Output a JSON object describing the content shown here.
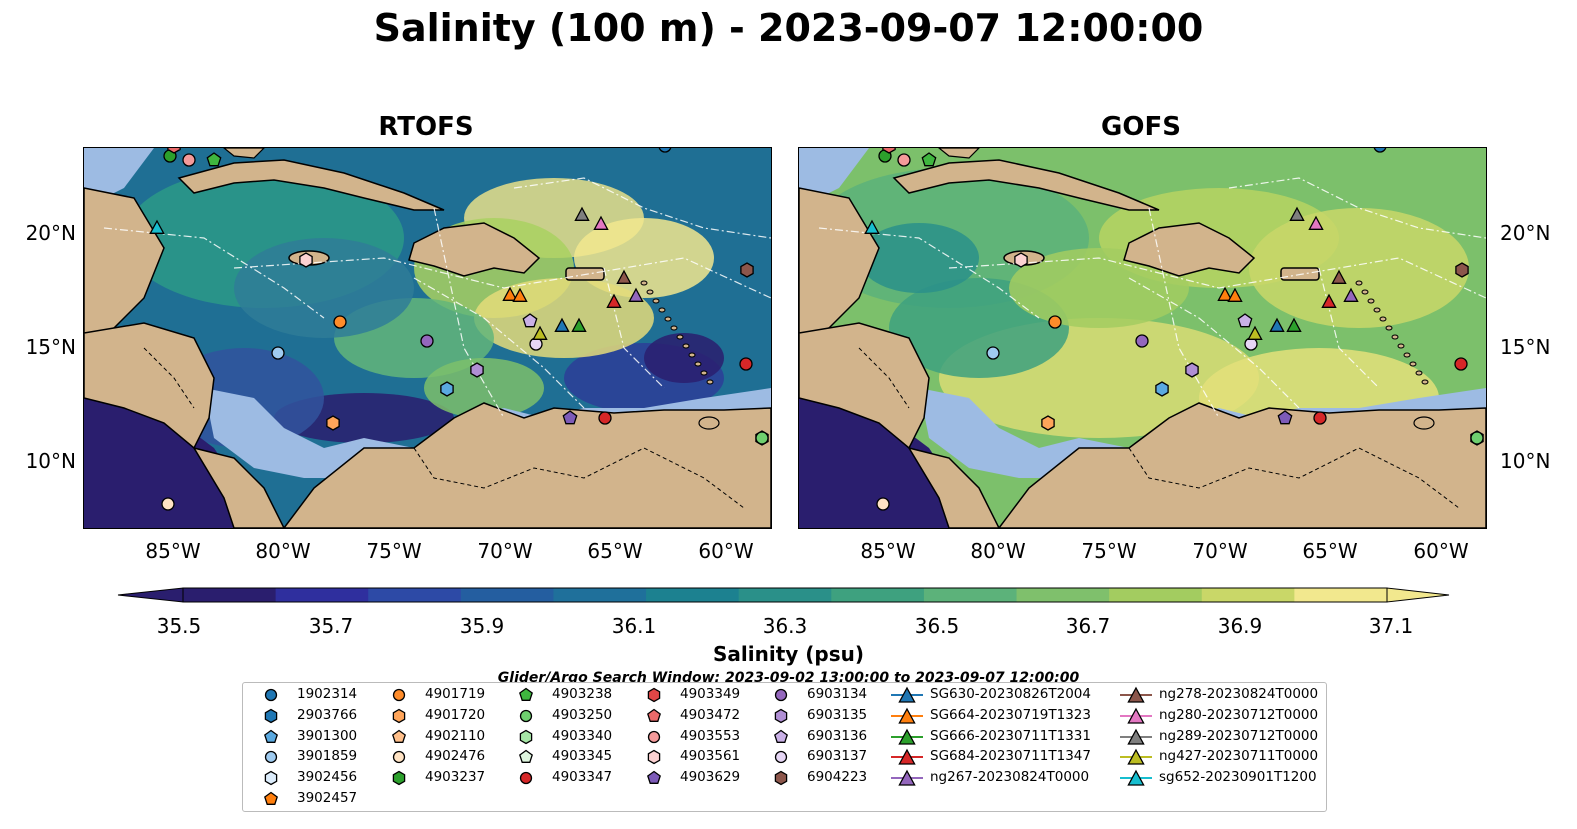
{
  "title": "Salinity (100 m) - 2023-09-07 12:00:00",
  "panels": [
    {
      "title": "RTOFS",
      "id": "rtofs"
    },
    {
      "title": "GOFS",
      "id": "gofs"
    }
  ],
  "lat_ticks": [
    "20°N",
    "15°N",
    "10°N"
  ],
  "lon_ticks": [
    "85°W",
    "80°W",
    "75°W",
    "70°W",
    "65°W",
    "60°W"
  ],
  "colorbar": {
    "label": "Salinity (psu)",
    "ticks": [
      "35.5",
      "35.7",
      "35.9",
      "36.1",
      "36.3",
      "36.5",
      "36.7",
      "36.9",
      "37.1"
    ],
    "colors": [
      "#2a1e6e",
      "#2f2f9e",
      "#2d4aa6",
      "#245ea0",
      "#1f709b",
      "#1c8190",
      "#2a9089",
      "#3ea17f",
      "#5cb27a",
      "#7fc06c",
      "#a3cc60",
      "#c9d768",
      "#f2e88e"
    ]
  },
  "search_window": "Glider/Argo Search Window: 2023-09-02 13:00:00 to 2023-09-07 12:00:00",
  "legend": [
    [
      {
        "label": "1902314",
        "shape": "circle",
        "color": "#1f77b4"
      },
      {
        "label": "2903766",
        "shape": "hexagon",
        "color": "#1f77b4"
      },
      {
        "label": "3901300",
        "shape": "pentagon",
        "color": "#5aa9e0"
      },
      {
        "label": "3901859",
        "shape": "circle",
        "color": "#9fcbf0"
      },
      {
        "label": "3902456",
        "shape": "hexagon",
        "color": "#dcecfb"
      },
      {
        "label": "3902457",
        "shape": "pentagon",
        "color": "#ff7f0e"
      }
    ],
    [
      {
        "label": "4901719",
        "shape": "circle",
        "color": "#ff8c2a"
      },
      {
        "label": "4901720",
        "shape": "hexagon",
        "color": "#ffa55a"
      },
      {
        "label": "4902110",
        "shape": "pentagon",
        "color": "#ffbf8a"
      },
      {
        "label": "4902476",
        "shape": "circle",
        "color": "#ffe3c4"
      },
      {
        "label": "4903237",
        "shape": "hexagon",
        "color": "#2ca02c"
      }
    ],
    [
      {
        "label": "4903238",
        "shape": "pentagon",
        "color": "#3fb63f"
      },
      {
        "label": "4903250",
        "shape": "circle",
        "color": "#6fcf6f"
      },
      {
        "label": "4903340",
        "shape": "hexagon",
        "color": "#a6e6a6"
      },
      {
        "label": "4903345",
        "shape": "pentagon",
        "color": "#dff6df"
      },
      {
        "label": "4903347",
        "shape": "circle",
        "color": "#d62728"
      }
    ],
    [
      {
        "label": "4903349",
        "shape": "hexagon",
        "color": "#e04646"
      },
      {
        "label": "4903472",
        "shape": "pentagon",
        "color": "#ea6a6a"
      },
      {
        "label": "4903553",
        "shape": "circle",
        "color": "#f49a9a"
      },
      {
        "label": "4903561",
        "shape": "hexagon",
        "color": "#fcd2d2"
      },
      {
        "label": "4903629",
        "shape": "pentagon",
        "color": "#7d5bb8"
      }
    ],
    [
      {
        "label": "6903134",
        "shape": "circle",
        "color": "#9467bd"
      },
      {
        "label": "6903135",
        "shape": "hexagon",
        "color": "#b08fd4"
      },
      {
        "label": "6903136",
        "shape": "pentagon",
        "color": "#c9b0e6"
      },
      {
        "label": "6903137",
        "shape": "circle",
        "color": "#e6d6f5"
      },
      {
        "label": "6904223",
        "shape": "hexagon",
        "color": "#8c564b"
      }
    ],
    [
      {
        "label": "SG630-20230826T2004",
        "shape": "triangle",
        "color": "#1f77b4"
      },
      {
        "label": "SG664-20230719T1323",
        "shape": "triangle",
        "color": "#ff7f0e"
      },
      {
        "label": "SG666-20230711T1331",
        "shape": "triangle",
        "color": "#2ca02c"
      },
      {
        "label": "SG684-20230711T1347",
        "shape": "triangle",
        "color": "#d62728"
      },
      {
        "label": "ng267-20230824T0000",
        "shape": "triangle",
        "color": "#9467bd"
      }
    ],
    [
      {
        "label": "ng278-20230824T0000",
        "shape": "triangle",
        "color": "#8c564b"
      },
      {
        "label": "ng280-20230712T0000",
        "shape": "triangle",
        "color": "#e377c2"
      },
      {
        "label": "ng289-20230712T0000",
        "shape": "triangle",
        "color": "#7f7f7f"
      },
      {
        "label": "ng427-20230711T0000",
        "shape": "triangle",
        "color": "#bcbd22"
      },
      {
        "label": "sg652-20230901T1200",
        "shape": "triangle",
        "color": "#17becf"
      }
    ]
  ],
  "colors": {
    "land": "#d2b48c",
    "shelf": "#9dbbe3",
    "deep_pacific": "#2a1e6e"
  }
}
